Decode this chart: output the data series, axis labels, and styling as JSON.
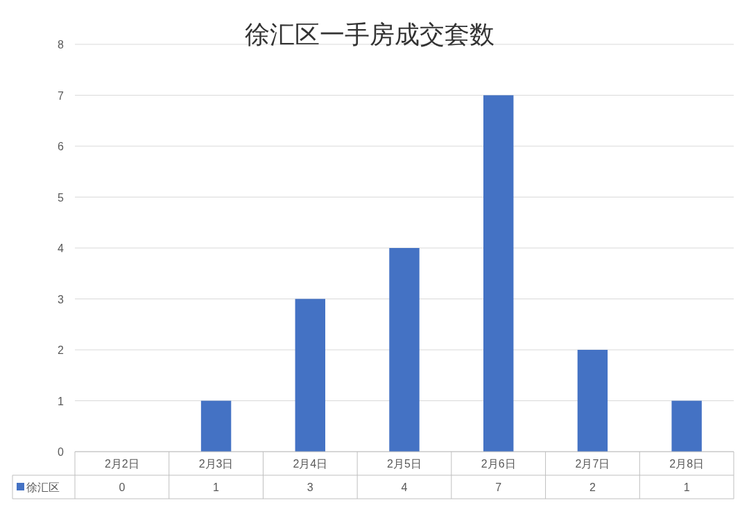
{
  "chart_data": {
    "type": "bar",
    "title": "徐汇区一手房成交套数",
    "categories": [
      "2月2日",
      "2月3日",
      "2月4日",
      "2月5日",
      "2月6日",
      "2月7日",
      "2月8日"
    ],
    "series": [
      {
        "name": "徐汇区",
        "color": "#4472c4",
        "values": [
          0,
          1,
          3,
          4,
          7,
          2,
          1
        ]
      }
    ],
    "ylim": [
      0,
      8
    ],
    "yticks": [
      0,
      1,
      2,
      3,
      4,
      5,
      6,
      7,
      8
    ],
    "grid": "y",
    "legend": "bottom",
    "data_labels": true
  }
}
